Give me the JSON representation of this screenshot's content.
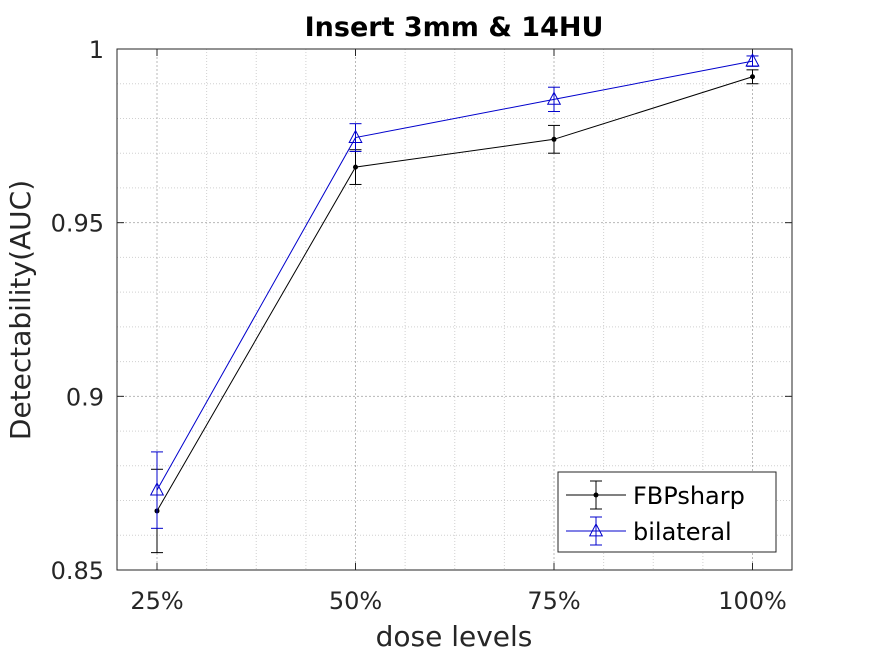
{
  "chart_data": {
    "type": "line",
    "title": "Insert 3mm & 14HU",
    "xlabel": "dose levels",
    "ylabel": "Detectability(AUC)",
    "categories": [
      "25%",
      "50%",
      "75%",
      "100%"
    ],
    "ylim": [
      0.85,
      1
    ],
    "yticks": [
      0.85,
      0.9,
      0.95,
      1
    ],
    "ytick_labels": [
      "0.85",
      "0.9",
      "0.95",
      "1"
    ],
    "grid": true,
    "minor_grid": true,
    "legend_position": "bottom-right",
    "series": [
      {
        "name": "FBPsharp",
        "color": "#000000",
        "marker": "dot",
        "values": [
          0.867,
          0.966,
          0.974,
          0.992
        ],
        "errors": [
          0.012,
          0.005,
          0.004,
          0.002
        ]
      },
      {
        "name": "bilateral",
        "color": "#0000cc",
        "marker": "triangle",
        "values": [
          0.873,
          0.9745,
          0.9855,
          0.9965
        ],
        "errors": [
          0.011,
          0.004,
          0.0035,
          0.0015
        ]
      }
    ]
  }
}
